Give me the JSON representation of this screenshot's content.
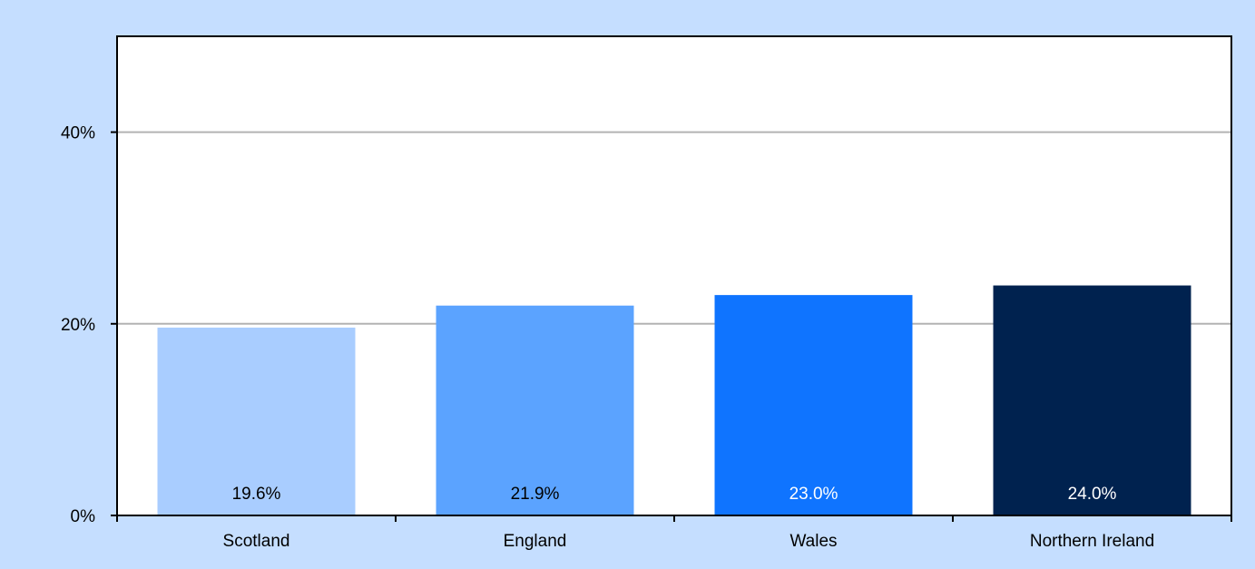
{
  "chart_data": {
    "type": "bar",
    "title": "",
    "xlabel": "",
    "ylabel": "",
    "categories": [
      "Scotland",
      "England",
      "Wales",
      "Northern Ireland"
    ],
    "values": [
      19.6,
      21.9,
      23.0,
      24.0
    ],
    "data_labels": [
      "19.6%",
      "21.9%",
      "23.0%",
      "24.0%"
    ],
    "bar_colors": [
      "#a9cdff",
      "#5ba3ff",
      "#0f74ff",
      "#00224f"
    ],
    "data_label_colors": [
      "#000000",
      "#000000",
      "#ffffff",
      "#ffffff"
    ],
    "ylim": [
      0,
      50
    ],
    "yticks": [
      0,
      20,
      40
    ],
    "ytick_labels": [
      "0%",
      "20%",
      "40%"
    ],
    "grid": true,
    "legend": "none",
    "colors": {
      "background": "#c5deff",
      "plot_area": "#ffffff",
      "gridline": "#b3b3b3",
      "axis": "#000000"
    }
  }
}
